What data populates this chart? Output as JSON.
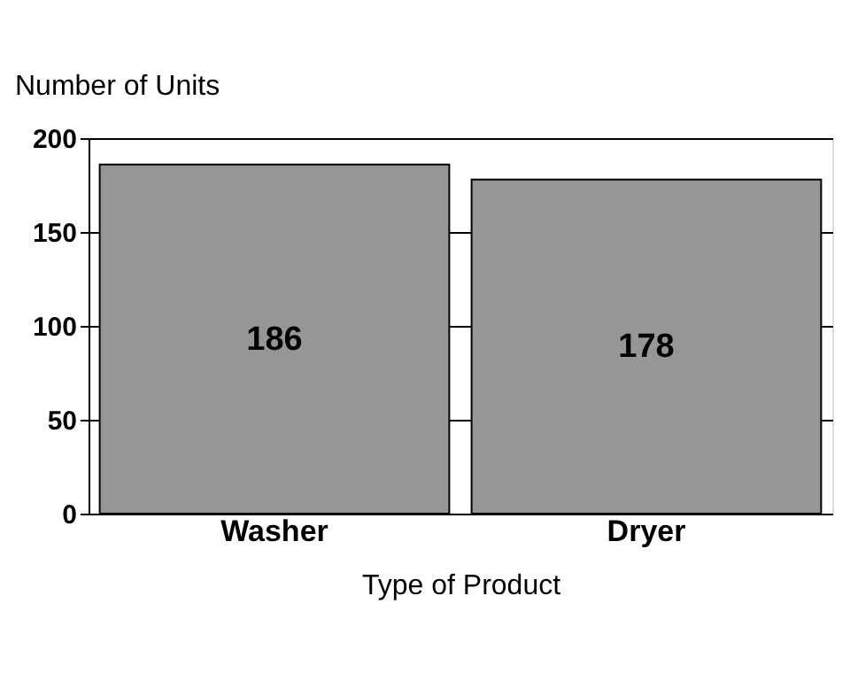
{
  "chart_data": {
    "type": "bar",
    "categories": [
      "Washer",
      "Dryer"
    ],
    "values": [
      186,
      178
    ],
    "color": "#969696",
    "ylabel": "Number of Units",
    "xlabel": "Type of Product",
    "ylim": [
      0,
      200
    ],
    "yticks": [
      0,
      50,
      100,
      150,
      200
    ],
    "grid": "y",
    "data_labels": true
  }
}
